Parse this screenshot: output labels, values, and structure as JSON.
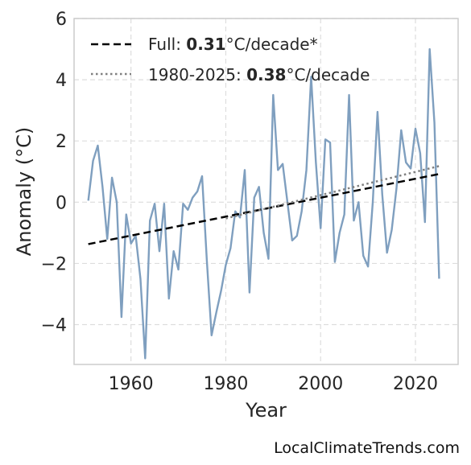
{
  "chart_data": {
    "type": "line",
    "xlabel": "Year",
    "ylabel": "Anomaly (°C)",
    "xlim": [
      1948,
      2029
    ],
    "ylim": [
      -5.3,
      6.0
    ],
    "x_ticks": [
      1960,
      1980,
      2000,
      2020
    ],
    "y_ticks": [
      -4,
      -2,
      0,
      2,
      4,
      6
    ],
    "y_tick_labels": [
      "−4",
      "−2",
      "0",
      "2",
      "4",
      "6"
    ],
    "grid": true,
    "legend_position": "top-left",
    "series": [
      {
        "color": "#7f9fbf",
        "x": [
          1951,
          1952,
          1953,
          1954,
          1955,
          1956,
          1957,
          1958,
          1959,
          1960,
          1961,
          1962,
          1963,
          1964,
          1965,
          1966,
          1967,
          1968,
          1969,
          1970,
          1971,
          1972,
          1973,
          1974,
          1975,
          1976,
          1977,
          1978,
          1979,
          1980,
          1981,
          1982,
          1983,
          1984,
          1985,
          1986,
          1987,
          1988,
          1989,
          1990,
          1991,
          1992,
          1993,
          1994,
          1995,
          1996,
          1997,
          1998,
          1999,
          2000,
          2001,
          2002,
          2003,
          2004,
          2005,
          2006,
          2007,
          2008,
          2009,
          2010,
          2011,
          2012,
          2013,
          2014,
          2015,
          2016,
          2017,
          2018,
          2019,
          2020,
          2021,
          2022,
          2023,
          2024,
          2025
        ],
        "y": [
          0.05,
          1.35,
          1.85,
          0.5,
          -1.2,
          0.8,
          0.0,
          -3.75,
          -0.4,
          -1.35,
          -1.1,
          -2.5,
          -5.1,
          -0.6,
          -0.05,
          -1.6,
          -0.05,
          -3.15,
          -1.6,
          -2.2,
          -0.05,
          -0.25,
          0.15,
          0.35,
          0.85,
          -1.9,
          -4.35,
          -3.6,
          -2.9,
          -2.05,
          -1.5,
          -0.3,
          -0.5,
          1.05,
          -2.95,
          0.15,
          0.5,
          -1.0,
          -1.85,
          3.5,
          1.05,
          1.25,
          0.0,
          -1.25,
          -1.1,
          -0.3,
          1.05,
          4.1,
          1.3,
          -0.85,
          2.05,
          1.95,
          -1.95,
          -1.0,
          -0.4,
          3.5,
          -0.6,
          0.0,
          -1.75,
          -2.1,
          0.0,
          2.95,
          0.25,
          -1.65,
          -0.9,
          0.45,
          2.35,
          1.3,
          1.1,
          2.4,
          1.6,
          -0.65,
          5.0,
          2.6,
          -2.5
        ]
      }
    ],
    "trend_lines": [
      {
        "label_prefix": "Full: ",
        "label_value": "0.31",
        "label_suffix": "°C/decade*",
        "style": "dashed",
        "color": "#000000",
        "x": [
          1951,
          2025
        ],
        "y": [
          -1.37,
          0.92
        ]
      },
      {
        "label_prefix": "1980-2025: ",
        "label_value": "0.38",
        "label_suffix": "°C/decade",
        "style": "dotted",
        "color": "#808080",
        "x": [
          1980,
          2025
        ],
        "y": [
          -0.53,
          1.18
        ]
      }
    ]
  },
  "credit": "LocalClimateTrends.com"
}
